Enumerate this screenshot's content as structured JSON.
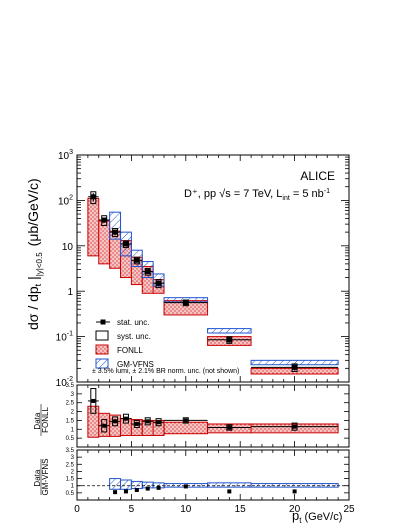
{
  "chart_data": {
    "type": "scatter",
    "experiment": "ALICE",
    "process_label": "D⁺, pp √s = 7 TeV, L",
    "process_label_sub": "int",
    "process_label_tail": " = 5 nb",
    "process_label_sup": "-1",
    "ylabel_main": "dσ / dp",
    "ylabel_main_sub": "t",
    "ylabel_main_tail": " |",
    "ylabel_main_sub2": "|y|<0.5",
    "ylabel_unit": "(μb/GeV/c)",
    "xlabel": "p",
    "xlabel_sub": "t",
    "xlabel_unit": "(GeV/c)",
    "ratio1_label_top": "Data",
    "ratio1_label_bot": "FONLL",
    "ratio2_label_top": "Data",
    "ratio2_label_bot": "GM-VFNS",
    "note": "± 3.5% lumi, ± 2.1% BR norm. unc. (not shown)",
    "xlim": [
      0,
      25
    ],
    "ylim": [
      0.01,
      1000
    ],
    "yscale": "log",
    "ratio_ylim": [
      0,
      3.5
    ],
    "x_ticks": [
      0,
      5,
      10,
      15,
      20,
      25
    ],
    "y_ticks": [
      {
        "v": 0.01,
        "base": "10",
        "exp": "-2"
      },
      {
        "v": 0.1,
        "base": "10",
        "exp": "-1"
      },
      {
        "v": 1,
        "base": "1",
        "exp": ""
      },
      {
        "v": 10,
        "base": "10",
        "exp": ""
      },
      {
        "v": 100,
        "base": "10",
        "exp": "2"
      },
      {
        "v": 1000,
        "base": "10",
        "exp": "3"
      }
    ],
    "ratio_ticks": [
      "0.5",
      "1",
      "1.5",
      "2",
      "2.5",
      "3",
      "3.5"
    ],
    "legend": [
      {
        "label": "stat. unc.",
        "style": "stat"
      },
      {
        "label": "syst. unc.",
        "style": "syst"
      },
      {
        "label": "FONLL",
        "style": "fonll"
      },
      {
        "label": "GM-VFNS",
        "style": "gmvfns"
      }
    ],
    "colors": {
      "fonll_fill": "#e8a0a0",
      "fonll_line": "#cc0000",
      "gmvfns_line": "#2255cc",
      "gmvfns_fill": "#b8c8ee"
    },
    "bins": [
      {
        "lo": 1,
        "hi": 2,
        "x": 1.5,
        "y": 120,
        "stat": 25,
        "syst": 35,
        "fonll": [
          6,
          110
        ],
        "gmvfns": null,
        "r_fonll": 2.6,
        "r_fonll_syst": 0.7,
        "r_fonll_band": [
          0.55,
          2.3
        ],
        "r_gmvfns": null,
        "r_gmvfns_band": null
      },
      {
        "lo": 2,
        "hi": 3,
        "x": 2.5,
        "y": 37,
        "stat": 5,
        "syst": 9,
        "fonll": [
          4,
          35
        ],
        "gmvfns": null,
        "r_fonll": 1.2,
        "r_fonll_syst": 0.35,
        "r_fonll_band": [
          0.6,
          1.9
        ],
        "r_gmvfns": null,
        "r_gmvfns_band": null
      },
      {
        "lo": 3,
        "hi": 4,
        "x": 3.5,
        "y": 20,
        "stat": 2.5,
        "syst": 4,
        "fonll": [
          3.2,
          21
        ],
        "gmvfns": [
          14,
          55
        ],
        "r_fonll": 1.45,
        "r_fonll_syst": 0.25,
        "r_fonll_band": [
          0.6,
          1.8
        ],
        "r_gmvfns": 0.55,
        "r_gmvfns_band": [
          0.75,
          1.5
        ]
      },
      {
        "lo": 4,
        "hi": 5,
        "x": 4.5,
        "y": 11,
        "stat": 1.2,
        "syst": 1.8,
        "fonll": [
          2.0,
          13
        ],
        "gmvfns": [
          6,
          20
        ],
        "r_fonll": 1.6,
        "r_fonll_syst": 0.25,
        "r_fonll_band": [
          0.65,
          1.6
        ],
        "r_gmvfns": 0.6,
        "r_gmvfns_band": [
          0.75,
          1.4
        ]
      },
      {
        "lo": 5,
        "hi": 6,
        "x": 5.5,
        "y": 4.8,
        "stat": 0.5,
        "syst": 0.8,
        "fonll": [
          1.4,
          5.6
        ],
        "gmvfns": [
          3.5,
          8.0
        ],
        "r_fonll": 1.3,
        "r_fonll_syst": 0.2,
        "r_fonll_band": [
          0.65,
          1.55
        ],
        "r_gmvfns": 0.7,
        "r_gmvfns_band": [
          0.8,
          1.3
        ]
      },
      {
        "lo": 6,
        "hi": 7,
        "x": 6.5,
        "y": 2.7,
        "stat": 0.3,
        "syst": 0.45,
        "fonll": [
          0.9,
          3.5
        ],
        "gmvfns": [
          2.0,
          4.5
        ],
        "r_fonll": 1.45,
        "r_fonll_syst": 0.2,
        "r_fonll_band": [
          0.65,
          1.5
        ],
        "r_gmvfns": 0.8,
        "r_gmvfns_band": [
          0.85,
          1.25
        ]
      },
      {
        "lo": 7,
        "hi": 8,
        "x": 7.5,
        "y": 1.5,
        "stat": 0.2,
        "syst": 0.3,
        "fonll": [
          0.9,
          1.8
        ],
        "gmvfns": [
          1.3,
          2.4
        ],
        "r_fonll": 1.4,
        "r_fonll_syst": 0.2,
        "r_fonll_band": [
          0.65,
          1.5
        ],
        "r_gmvfns": 0.85,
        "r_gmvfns_band": [
          0.85,
          1.2
        ]
      },
      {
        "lo": 8,
        "hi": 12,
        "x": 10,
        "y": 0.56,
        "stat": 0.05,
        "syst": 0.08,
        "fonll": [
          0.3,
          0.62
        ],
        "gmvfns": [
          0.58,
          0.72
        ],
        "r_fonll": 1.5,
        "r_fonll_syst": 0.15,
        "r_fonll_band": [
          0.75,
          1.4
        ],
        "r_gmvfns": 0.95,
        "r_gmvfns_band": [
          0.9,
          1.15
        ]
      },
      {
        "lo": 12,
        "hi": 16,
        "x": 14,
        "y": 0.085,
        "stat": 0.012,
        "syst": 0.014,
        "fonll": [
          0.064,
          0.1
        ],
        "gmvfns": [
          0.12,
          0.15
        ],
        "r_fonll": 1.1,
        "r_fonll_syst": 0.15,
        "r_fonll_band": [
          0.8,
          1.3
        ],
        "r_gmvfns": 0.6,
        "r_gmvfns_band": [
          0.9,
          1.2
        ]
      },
      {
        "lo": 16,
        "hi": 24,
        "x": 20,
        "y": 0.021,
        "stat": 0.003,
        "syst": 0.004,
        "fonll": [
          0.015,
          0.02
        ],
        "gmvfns": [
          0.024,
          0.03
        ],
        "r_fonll": 1.15,
        "r_fonll_syst": 0.2,
        "r_fonll_band": [
          0.8,
          1.3
        ],
        "r_gmvfns": 0.6,
        "r_gmvfns_band": [
          0.9,
          1.15
        ]
      }
    ]
  }
}
